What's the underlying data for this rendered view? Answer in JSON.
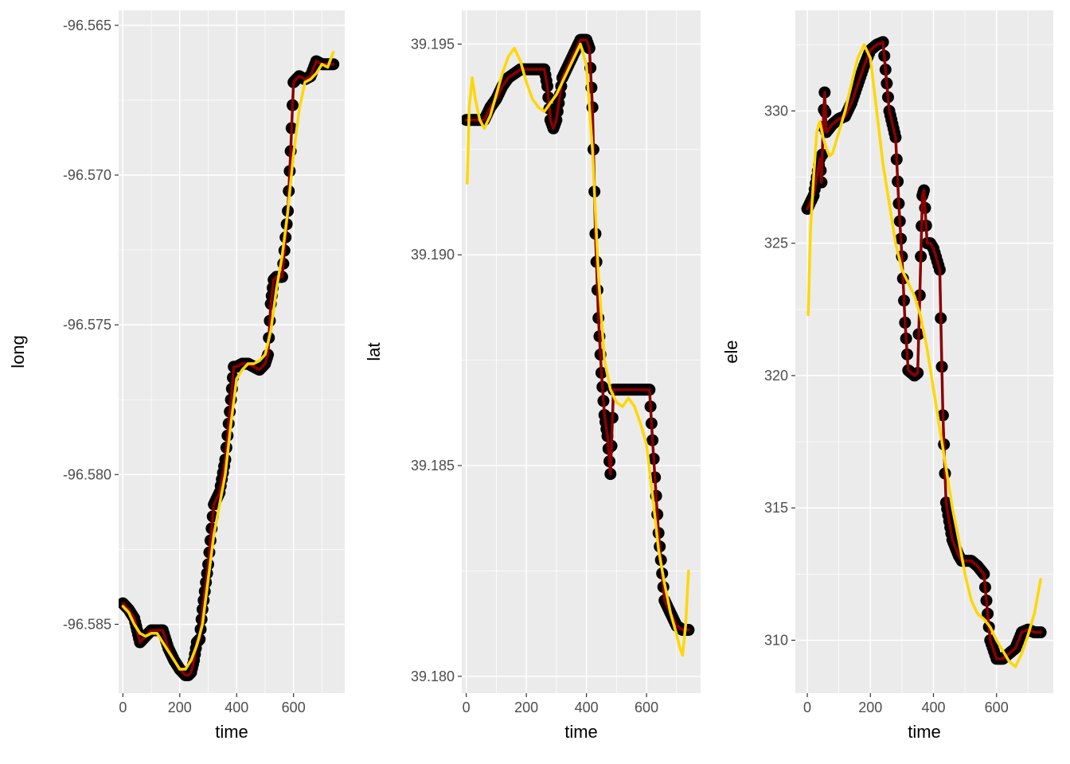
{
  "chart_data": [
    {
      "type": "line",
      "xlabel": "time",
      "ylabel": "long",
      "xlim": [
        -15,
        780
      ],
      "ylim": [
        -96.5873,
        -96.5645
      ],
      "x_ticks": [
        0,
        200,
        400,
        600
      ],
      "x_tick_labels": [
        "0",
        "200",
        "400",
        "600"
      ],
      "y_ticks": [
        -96.585,
        -96.58,
        -96.575,
        -96.57,
        -96.565
      ],
      "y_tick_labels": [
        "-96.585",
        "-96.580",
        "-96.575",
        "-96.570",
        "-96.565"
      ],
      "grid": true,
      "series": [
        {
          "style": "points",
          "color": "#000000",
          "x": [
            0,
            20,
            40,
            50,
            60,
            70,
            80,
            100,
            120,
            140,
            160,
            180,
            200,
            210,
            220,
            230,
            240,
            250,
            260,
            270,
            280,
            300,
            320,
            340,
            360,
            380,
            390,
            400,
            420,
            440,
            460,
            480,
            500,
            510,
            520,
            530,
            540,
            560,
            580,
            590,
            600,
            620,
            640,
            660,
            680,
            700,
            720,
            740
          ],
          "values": [
            -96.5843,
            -96.5845,
            -96.5848,
            -96.5852,
            -96.5856,
            -96.5855,
            -96.5854,
            -96.5852,
            -96.5852,
            -96.5852,
            -96.5858,
            -96.5862,
            -96.5865,
            -96.5866,
            -96.5867,
            -96.5867,
            -96.5866,
            -96.5862,
            -96.5856,
            -96.5855,
            -96.5845,
            -96.583,
            -96.581,
            -96.5806,
            -96.5795,
            -96.5775,
            -96.5764,
            -96.5764,
            -96.5763,
            -96.5763,
            -96.5764,
            -96.5765,
            -96.5763,
            -96.576,
            -96.5743,
            -96.5735,
            -96.5734,
            -96.5734,
            -96.5712,
            -96.5692,
            -96.5669,
            -96.5667,
            -96.5668,
            -96.5667,
            -96.5662,
            -96.5663,
            -96.5663,
            -96.5663
          ]
        },
        {
          "style": "line",
          "color": "#8b0000",
          "x": [
            0,
            20,
            40,
            50,
            60,
            70,
            80,
            100,
            120,
            140,
            160,
            180,
            200,
            210,
            220,
            230,
            240,
            250,
            260,
            270,
            280,
            300,
            320,
            340,
            360,
            380,
            390,
            400,
            420,
            440,
            460,
            480,
            500,
            510,
            520,
            530,
            540,
            560,
            580,
            590,
            600,
            620,
            640,
            660,
            680,
            700,
            720,
            740
          ],
          "values": [
            -96.5843,
            -96.5845,
            -96.5848,
            -96.5852,
            -96.5856,
            -96.5855,
            -96.5854,
            -96.5852,
            -96.5852,
            -96.5852,
            -96.5858,
            -96.5862,
            -96.5865,
            -96.5866,
            -96.5867,
            -96.5867,
            -96.5866,
            -96.5862,
            -96.5856,
            -96.5855,
            -96.5845,
            -96.583,
            -96.581,
            -96.5806,
            -96.5795,
            -96.5775,
            -96.5764,
            -96.5764,
            -96.5763,
            -96.5763,
            -96.5764,
            -96.5765,
            -96.5763,
            -96.576,
            -96.5743,
            -96.5735,
            -96.5734,
            -96.5734,
            -96.5712,
            -96.5692,
            -96.5669,
            -96.5667,
            -96.5668,
            -96.5667,
            -96.5662,
            -96.5663,
            -96.5663,
            -96.5663
          ]
        },
        {
          "style": "line",
          "color": "#ffd700",
          "x": [
            0,
            20,
            40,
            60,
            80,
            100,
            120,
            140,
            160,
            180,
            200,
            220,
            240,
            260,
            280,
            300,
            320,
            340,
            360,
            380,
            400,
            420,
            440,
            460,
            480,
            500,
            520,
            540,
            560,
            580,
            600,
            620,
            640,
            660,
            680,
            700,
            720,
            740
          ],
          "values": [
            -96.5844,
            -96.5846,
            -96.585,
            -96.5853,
            -96.5854,
            -96.5853,
            -96.5853,
            -96.5856,
            -96.5859,
            -96.5862,
            -96.5865,
            -96.5865,
            -96.5862,
            -96.5857,
            -96.585,
            -96.5835,
            -96.582,
            -96.581,
            -96.58,
            -96.5783,
            -96.5768,
            -96.5765,
            -96.5763,
            -96.5763,
            -96.5762,
            -96.576,
            -96.5752,
            -96.5738,
            -96.5727,
            -96.5712,
            -96.5693,
            -96.5678,
            -96.5669,
            -96.5668,
            -96.5666,
            -96.5663,
            -96.5664,
            -96.5659
          ]
        }
      ]
    },
    {
      "type": "line",
      "xlabel": "time",
      "ylabel": "lat",
      "xlim": [
        -15,
        780
      ],
      "ylim": [
        39.1796,
        39.1958
      ],
      "x_ticks": [
        0,
        200,
        400,
        600
      ],
      "x_tick_labels": [
        "0",
        "200",
        "400",
        "600"
      ],
      "y_ticks": [
        39.18,
        39.185,
        39.19,
        39.195
      ],
      "y_tick_labels": [
        "39.180",
        "39.185",
        "39.190",
        "39.195"
      ],
      "grid": true,
      "series": [
        {
          "style": "points",
          "color": "#000000",
          "x": [
            0,
            20,
            40,
            60,
            80,
            100,
            120,
            140,
            160,
            180,
            200,
            220,
            240,
            260,
            270,
            280,
            290,
            300,
            320,
            340,
            360,
            380,
            390,
            400,
            410,
            420,
            430,
            440,
            450,
            460,
            470,
            480,
            490,
            500,
            520,
            540,
            560,
            580,
            600,
            610,
            620,
            640,
            660,
            680,
            700,
            720,
            740
          ],
          "values": [
            39.1932,
            39.1932,
            39.1932,
            39.1932,
            39.1935,
            39.1937,
            39.194,
            39.1942,
            39.1943,
            39.1944,
            39.1944,
            39.1944,
            39.1944,
            39.1944,
            39.194,
            39.1932,
            39.193,
            39.1932,
            39.1942,
            39.1945,
            39.1948,
            39.1951,
            39.1951,
            39.1951,
            39.1949,
            39.1935,
            39.1905,
            39.1885,
            39.1872,
            39.1862,
            39.1857,
            39.1848,
            39.1868,
            39.1868,
            39.1868,
            39.1868,
            39.1868,
            39.1868,
            39.1868,
            39.1868,
            39.1856,
            39.1834,
            39.1818,
            39.1815,
            39.1812,
            39.1811,
            39.1811
          ]
        },
        {
          "style": "line",
          "color": "#8b0000",
          "x": [
            0,
            20,
            40,
            60,
            80,
            100,
            120,
            140,
            160,
            180,
            200,
            220,
            240,
            260,
            270,
            280,
            290,
            300,
            320,
            340,
            360,
            380,
            390,
            400,
            410,
            420,
            430,
            440,
            450,
            460,
            470,
            480,
            490,
            500,
            520,
            540,
            560,
            580,
            600,
            610,
            620,
            640,
            660,
            680,
            700,
            720,
            740
          ],
          "values": [
            39.1932,
            39.1932,
            39.1932,
            39.1932,
            39.1935,
            39.1937,
            39.194,
            39.1942,
            39.1943,
            39.1944,
            39.1944,
            39.1944,
            39.1944,
            39.1944,
            39.194,
            39.1932,
            39.193,
            39.1932,
            39.1942,
            39.1945,
            39.1948,
            39.1951,
            39.1951,
            39.1951,
            39.1949,
            39.1935,
            39.1905,
            39.1885,
            39.1872,
            39.1862,
            39.1857,
            39.1848,
            39.1868,
            39.1868,
            39.1868,
            39.1868,
            39.1868,
            39.1868,
            39.1868,
            39.1868,
            39.1856,
            39.1834,
            39.1818,
            39.1815,
            39.1812,
            39.1811,
            39.1811
          ]
        },
        {
          "style": "line",
          "color": "#ffd700",
          "x": [
            3,
            10,
            20,
            30,
            45,
            60,
            80,
            100,
            120,
            140,
            160,
            180,
            200,
            220,
            240,
            260,
            280,
            300,
            320,
            340,
            360,
            380,
            400,
            420,
            440,
            460,
            480,
            500,
            520,
            540,
            560,
            580,
            600,
            620,
            640,
            660,
            680,
            700,
            710,
            720,
            730,
            740
          ],
          "values": [
            39.1917,
            39.1935,
            39.1942,
            39.1937,
            39.1932,
            39.193,
            39.1933,
            39.1938,
            39.1943,
            39.1947,
            39.1949,
            39.1946,
            39.1941,
            39.1937,
            39.1935,
            39.1934,
            39.1936,
            39.1938,
            39.1941,
            39.1944,
            39.1947,
            39.195,
            39.1945,
            39.1925,
            39.1895,
            39.1875,
            39.1868,
            39.1865,
            39.1864,
            39.1866,
            39.1864,
            39.186,
            39.1855,
            39.1843,
            39.183,
            39.1822,
            39.1815,
            39.181,
            39.1807,
            39.1805,
            39.1812,
            39.1825
          ]
        }
      ]
    },
    {
      "type": "line",
      "xlabel": "time",
      "ylabel": "ele",
      "xlim": [
        -38,
        780
      ],
      "ylim": [
        308.0,
        333.8
      ],
      "x_ticks": [
        0,
        200,
        400,
        600
      ],
      "x_tick_labels": [
        "0",
        "200",
        "400",
        "600"
      ],
      "y_ticks": [
        310,
        315,
        320,
        325,
        330
      ],
      "y_tick_labels": [
        "310",
        "315",
        "320",
        "325",
        "330"
      ],
      "grid": true,
      "series": [
        {
          "style": "points",
          "color": "#000000",
          "x": [
            0,
            20,
            30,
            40,
            45,
            50,
            55,
            60,
            80,
            100,
            120,
            140,
            160,
            180,
            200,
            220,
            240,
            260,
            270,
            280,
            290,
            300,
            310,
            320,
            330,
            340,
            350,
            360,
            365,
            370,
            380,
            390,
            400,
            420,
            430,
            440,
            450,
            460,
            470,
            480,
            490,
            500,
            520,
            540,
            560,
            580,
            600,
            620,
            640,
            660,
            680,
            700,
            720,
            740
          ],
          "values": [
            326.3,
            326.8,
            327.5,
            328.2,
            327.3,
            329.4,
            330.7,
            329.2,
            329.5,
            329.7,
            329.8,
            330.3,
            331.0,
            331.7,
            332.3,
            332.5,
            332.6,
            330.0,
            329.5,
            329.0,
            326.5,
            324.5,
            322.0,
            320.2,
            320.1,
            320.0,
            320.1,
            324.5,
            326.8,
            327.0,
            325.0,
            325.0,
            324.8,
            324.0,
            318.5,
            315.2,
            314.5,
            313.8,
            313.5,
            313.2,
            313.0,
            313.0,
            313.0,
            312.8,
            312.5,
            310.0,
            309.3,
            309.3,
            309.5,
            309.7,
            310.3,
            310.4,
            310.3,
            310.3
          ]
        },
        {
          "style": "line",
          "color": "#8b0000",
          "x": [
            0,
            20,
            30,
            40,
            45,
            50,
            55,
            60,
            80,
            100,
            120,
            140,
            160,
            180,
            200,
            220,
            240,
            260,
            270,
            280,
            290,
            300,
            310,
            320,
            330,
            340,
            350,
            360,
            365,
            370,
            380,
            390,
            400,
            420,
            430,
            440,
            450,
            460,
            470,
            480,
            490,
            500,
            520,
            540,
            560,
            580,
            600,
            620,
            640,
            660,
            680,
            700,
            720,
            740
          ],
          "values": [
            326.3,
            326.8,
            327.5,
            328.2,
            327.3,
            329.4,
            330.7,
            329.2,
            329.5,
            329.7,
            329.8,
            330.3,
            331.0,
            331.7,
            332.3,
            332.5,
            332.6,
            330.0,
            329.5,
            329.0,
            326.5,
            324.5,
            322.0,
            320.2,
            320.1,
            320.0,
            320.1,
            324.5,
            326.8,
            327.0,
            325.0,
            325.0,
            324.8,
            324.0,
            318.5,
            315.2,
            314.5,
            313.8,
            313.5,
            313.2,
            313.0,
            313.0,
            313.0,
            312.8,
            312.5,
            310.0,
            309.3,
            309.3,
            309.5,
            309.7,
            310.3,
            310.4,
            310.3,
            310.3
          ]
        },
        {
          "style": "line",
          "color": "#ffd700",
          "x": [
            3,
            10,
            20,
            30,
            40,
            50,
            60,
            70,
            80,
            90,
            100,
            120,
            140,
            160,
            180,
            200,
            220,
            240,
            260,
            280,
            300,
            320,
            340,
            360,
            380,
            400,
            420,
            440,
            460,
            480,
            500,
            520,
            540,
            560,
            580,
            600,
            620,
            640,
            660,
            680,
            700,
            720,
            740
          ],
          "values": [
            322.3,
            325.5,
            327.5,
            329.2,
            329.6,
            329.0,
            328.6,
            328.3,
            328.4,
            328.8,
            329.2,
            330.0,
            331.0,
            332.0,
            332.5,
            332.0,
            330.0,
            328.0,
            326.5,
            325.0,
            324.0,
            323.5,
            323.0,
            322.2,
            321.0,
            319.5,
            318.0,
            316.5,
            315.0,
            313.8,
            312.5,
            311.5,
            311.0,
            310.8,
            310.5,
            310.0,
            309.6,
            309.2,
            309.0,
            309.5,
            310.2,
            311.0,
            312.3
          ]
        }
      ]
    }
  ]
}
